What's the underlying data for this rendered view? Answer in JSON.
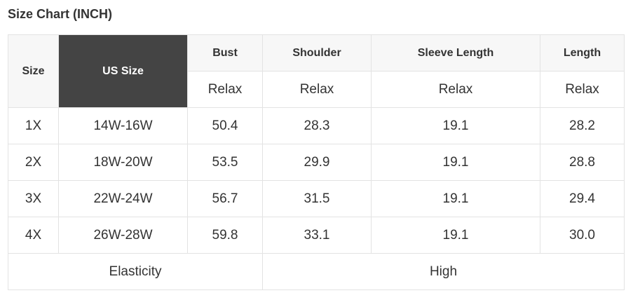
{
  "title": "Size Chart (INCH)",
  "headers": {
    "size": "Size",
    "us_size": "US Size",
    "bust": "Bust",
    "shoulder": "Shoulder",
    "sleeve": "Sleeve Length",
    "length": "Length"
  },
  "sub": [
    "Relax",
    "Relax",
    "Relax",
    "Relax"
  ],
  "rows": [
    [
      "1X",
      "14W-16W",
      "50.4",
      "28.3",
      "19.1",
      "28.2"
    ],
    [
      "2X",
      "18W-20W",
      "53.5",
      "29.9",
      "19.1",
      "28.8"
    ],
    [
      "3X",
      "22W-24W",
      "56.7",
      "31.5",
      "19.1",
      "29.4"
    ],
    [
      "4X",
      "26W-28W",
      "59.8",
      "33.1",
      "19.1",
      "30.0"
    ]
  ],
  "footer": {
    "label": "Elasticity",
    "value": "High"
  },
  "colors": {
    "us_size_header_bg": "#444444",
    "header_bg": "#f7f7f7"
  }
}
